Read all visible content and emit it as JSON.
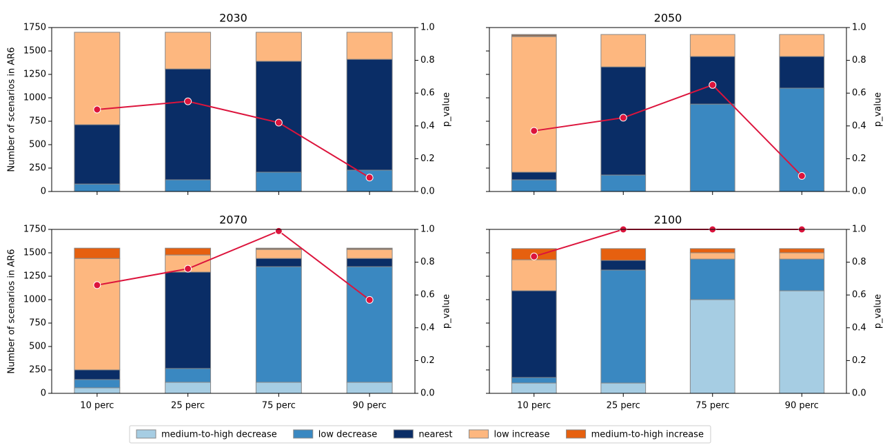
{
  "chart_data": [
    {
      "type": "bar",
      "stacked": true,
      "title": "2030",
      "ylabel": "Number of scenarios in AR6",
      "y2label": "p_value",
      "ylim": [
        0,
        1750
      ],
      "yticks": [
        0,
        250,
        500,
        750,
        1000,
        1250,
        1500,
        1750
      ],
      "y2lim": [
        0,
        1
      ],
      "y2ticks": [
        {
          "value": 0,
          "label": "0.0"
        },
        0.2,
        0.4,
        0.6,
        0.8,
        {
          "value": 1,
          "label": "1.0"
        }
      ],
      "series": [
        {
          "name": "medium-to-high decrease",
          "color": "#a6cde3",
          "values": [
            0,
            0,
            0,
            0
          ]
        },
        {
          "name": "low decrease",
          "color": "#3a88c1",
          "values": [
            80,
            125,
            206,
            228
          ]
        },
        {
          "name": "nearest",
          "color": "#0a2d66",
          "values": [
            633,
            1183,
            1184,
            1183
          ]
        },
        {
          "name": "low increase",
          "color": "#fdb77f",
          "values": [
            987,
            392,
            310,
            289
          ]
        },
        {
          "name": "medium-to-high increase",
          "color": "#e6600f",
          "values": [
            0,
            0,
            0,
            0
          ]
        },
        {
          "color": "#8c6e5a",
          "values": [
            0,
            0,
            0,
            0
          ]
        },
        {
          "color": "#dc143c",
          "axis": "y2",
          "values": [
            0.5,
            0.55,
            0.42,
            0.085
          ]
        }
      ]
    },
    {
      "type": "bar",
      "stacked": true,
      "title": "2050",
      "y2label": "p_value",
      "ylim": [
        0,
        1750
      ],
      "y2lim": [
        0,
        1
      ],
      "y2ticks": [
        {
          "value": 0,
          "label": "0.0"
        },
        0.2,
        0.4,
        0.6,
        0.8,
        {
          "value": 1,
          "label": "1.0"
        }
      ],
      "series": [
        {
          "color": "#a6cde3",
          "values": [
            0,
            0,
            0,
            0
          ]
        },
        {
          "color": "#3a88c1",
          "values": [
            125,
            176,
            933,
            1103
          ]
        },
        {
          "color": "#0a2d66",
          "values": [
            81,
            1154,
            508,
            338
          ]
        },
        {
          "color": "#fdb77f",
          "values": [
            1448,
            346,
            235,
            235
          ]
        },
        {
          "color": "#e6600f",
          "values": [
            0,
            0,
            0,
            0
          ]
        },
        {
          "color": "#8c6e5a",
          "values": [
            22,
            0,
            0,
            0
          ]
        },
        {
          "color": "#dc143c",
          "axis": "y2",
          "values": [
            0.37,
            0.45,
            0.65,
            0.095
          ]
        }
      ]
    },
    {
      "type": "bar",
      "stacked": true,
      "title": "2070",
      "ylabel": "Number of scenarios in AR6",
      "y2label": "p_value",
      "categories": [
        "10 perc",
        "25 perc",
        "75 perc",
        "90 perc"
      ],
      "ylim": [
        0,
        1750
      ],
      "yticks": [
        0,
        250,
        500,
        750,
        1000,
        1250,
        1500,
        1750
      ],
      "y2lim": [
        0,
        1
      ],
      "y2ticks": [
        {
          "value": 0,
          "label": "0.0"
        },
        0.2,
        0.4,
        0.6,
        0.8,
        {
          "value": 1,
          "label": "1.0"
        }
      ],
      "series": [
        {
          "color": "#a6cde3",
          "values": [
            59,
            118,
            118,
            118
          ]
        },
        {
          "color": "#3a88c1",
          "values": [
            88,
            147,
            1234,
            1234
          ]
        },
        {
          "color": "#0a2d66",
          "values": [
            103,
            1029,
            88,
            88
          ]
        },
        {
          "color": "#fdb77f",
          "values": [
            1190,
            183,
            96,
            96
          ]
        },
        {
          "color": "#e6600f",
          "values": [
            110,
            73,
            0,
            0
          ]
        },
        {
          "color": "#8c6e5a",
          "values": [
            0,
            0,
            14,
            14
          ]
        },
        {
          "color": "#dc143c",
          "axis": "y2",
          "values": [
            0.66,
            0.76,
            0.99,
            0.57
          ]
        }
      ]
    },
    {
      "type": "bar",
      "stacked": true,
      "title": "2100",
      "y2label": "p_value",
      "categories": [
        "10 perc",
        "25 perc",
        "75 perc",
        "90 perc"
      ],
      "ylim": [
        0,
        1750
      ],
      "y2lim": [
        0,
        1
      ],
      "y2ticks": [
        {
          "value": 0,
          "label": "0.0"
        },
        0.2,
        0.4,
        0.6,
        0.8,
        {
          "value": 1,
          "label": "1.0"
        }
      ],
      "series": [
        {
          "color": "#a6cde3",
          "values": [
            110,
            110,
            1000,
            1095
          ]
        },
        {
          "color": "#3a88c1",
          "values": [
            59,
            1206,
            433,
            338
          ]
        },
        {
          "color": "#0a2d66",
          "values": [
            926,
            103,
            0,
            0
          ]
        },
        {
          "color": "#fdb77f",
          "values": [
            331,
            0,
            67,
            67
          ]
        },
        {
          "color": "#e6600f",
          "values": [
            119,
            126,
            45,
            45
          ]
        },
        {
          "color": "#8c6e5a",
          "values": [
            0,
            0,
            0,
            0
          ]
        },
        {
          "color": "#dc143c",
          "axis": "y2",
          "values": [
            0.835,
            1,
            1,
            1
          ]
        }
      ]
    }
  ]
}
